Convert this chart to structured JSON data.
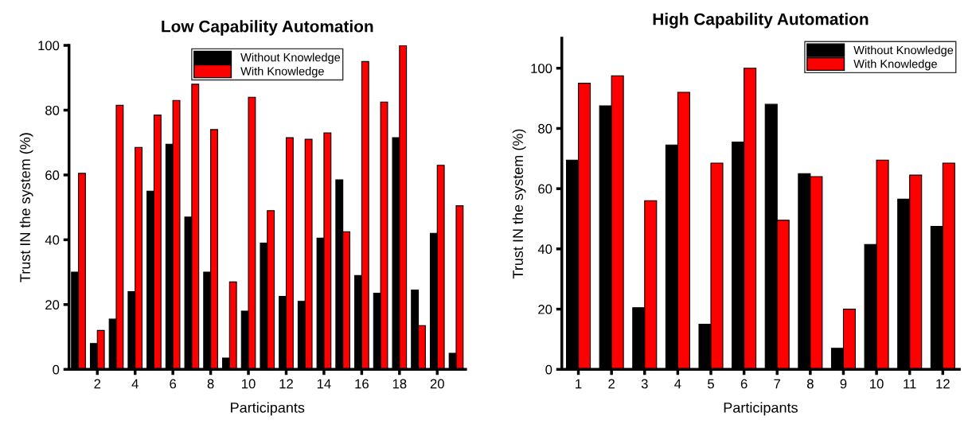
{
  "chart_data": [
    {
      "type": "bar",
      "title": "Low Capability Automation",
      "xlabel": "Participants",
      "ylabel": "Trust IN the system (%)",
      "x": [
        1,
        2,
        3,
        4,
        5,
        6,
        7,
        8,
        9,
        10,
        11,
        12,
        13,
        14,
        15,
        16,
        17,
        18,
        19,
        20,
        21
      ],
      "xlim": [
        0.5,
        21.5
      ],
      "xticks": [
        2,
        4,
        6,
        8,
        10,
        12,
        14,
        16,
        18,
        20
      ],
      "ylim": [
        0,
        100
      ],
      "yticks": [
        0,
        20,
        40,
        60,
        80,
        100
      ],
      "series": [
        {
          "name": "Without Knowledge",
          "color": "#000000",
          "values": [
            30,
            8,
            15.5,
            24,
            55,
            69.5,
            47,
            30,
            3.5,
            18,
            39,
            22.5,
            21,
            40.5,
            58.5,
            29,
            23.5,
            71.5,
            24.5,
            42,
            5
          ]
        },
        {
          "name": "With Knowledge",
          "color": "#ff0000",
          "values": [
            60.5,
            12,
            81.5,
            68.5,
            78.5,
            83,
            88,
            74,
            27,
            84,
            49,
            71.5,
            71,
            73,
            42.5,
            95,
            82.5,
            100,
            13.5,
            63,
            50.5
          ]
        }
      ],
      "legend": "top",
      "grid": false
    },
    {
      "type": "bar",
      "title": "High Capability Automation",
      "xlabel": "Participants",
      "ylabel": "Trust IN the system (%)",
      "categories": [
        "1",
        "2",
        "3",
        "4",
        "5",
        "6",
        "7",
        "8",
        "9",
        "10",
        "11",
        "12"
      ],
      "ylim": [
        0,
        110
      ],
      "yticks": [
        0,
        20,
        40,
        60,
        80,
        100
      ],
      "series": [
        {
          "name": "Without Knowledge",
          "color": "#000000",
          "values": [
            69.5,
            87.5,
            20.5,
            74.5,
            15,
            75.5,
            88,
            65,
            7,
            41.5,
            56.5,
            47.5
          ]
        },
        {
          "name": "With Knowledge",
          "color": "#ff0000",
          "values": [
            95,
            97.5,
            56,
            92,
            68.5,
            100,
            49.5,
            64,
            20,
            69.5,
            64.5,
            68.5
          ]
        }
      ],
      "legend": "top right",
      "grid": false
    }
  ]
}
